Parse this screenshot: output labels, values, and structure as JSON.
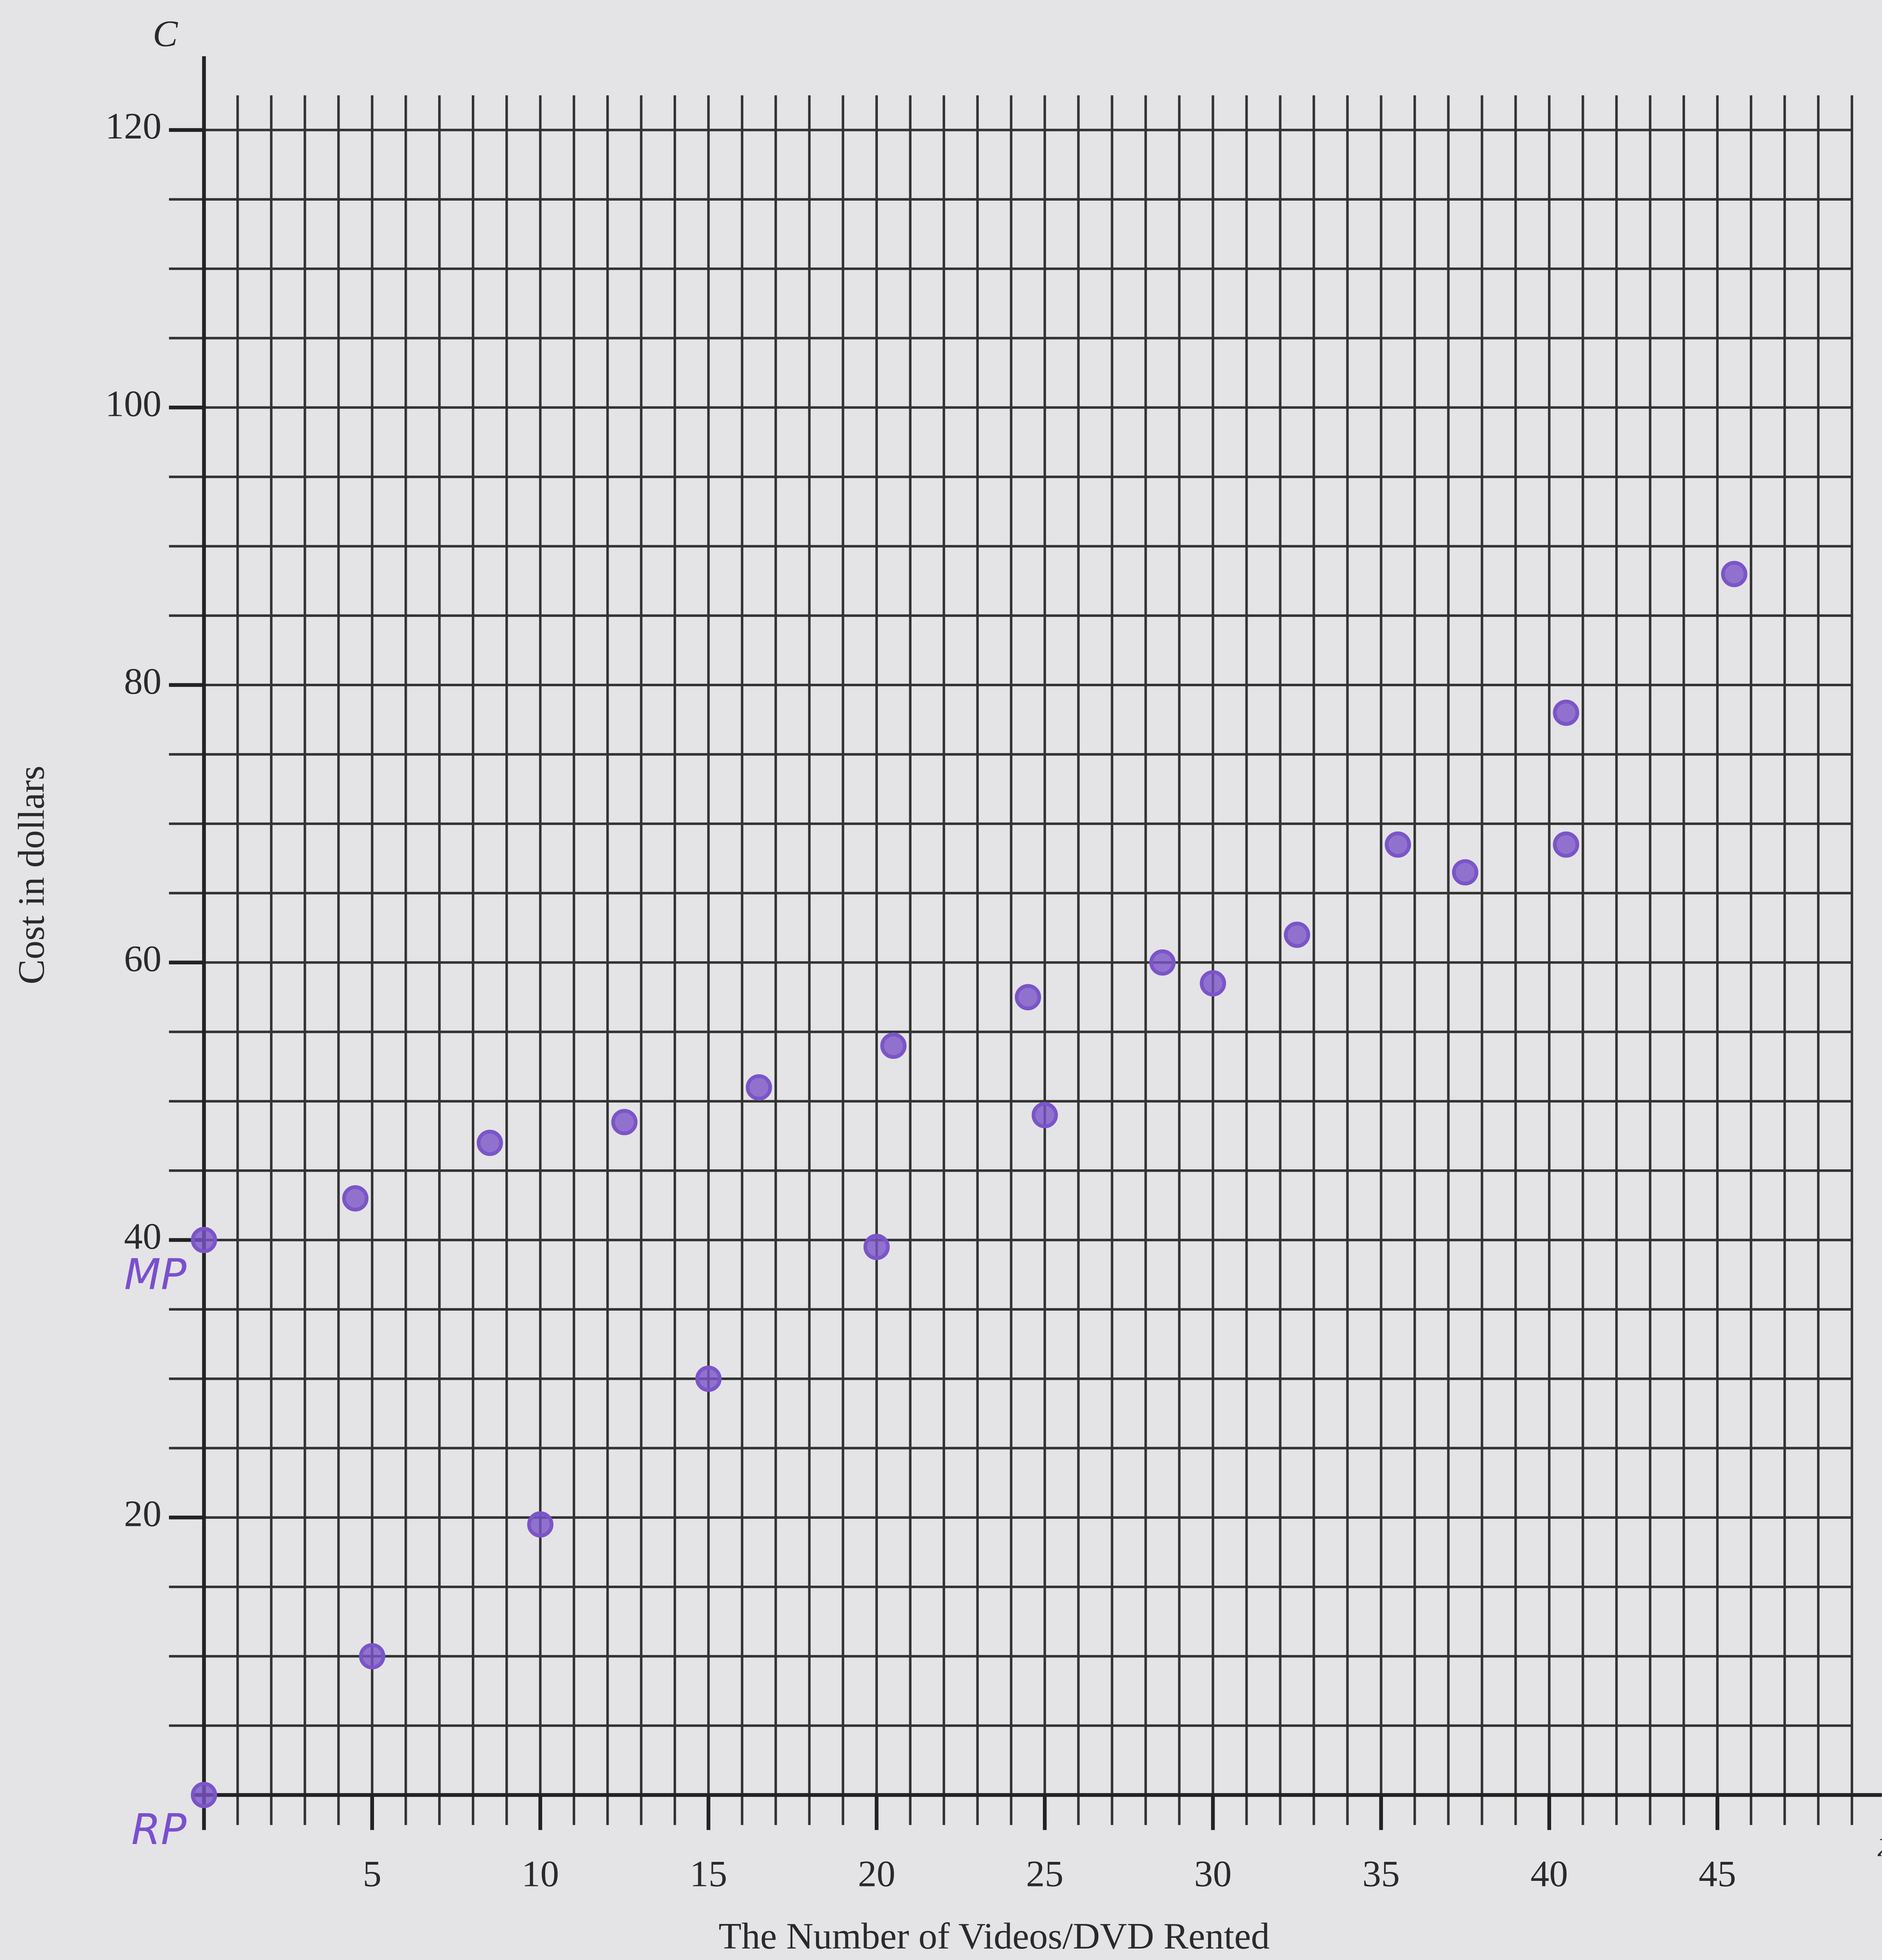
{
  "chart_data": {
    "type": "scatter",
    "xlabel": "The Number of Videos/DVD Rented",
    "ylabel": "Cost in dollars",
    "y_axis_letter": "C",
    "x_axis_letter": "x",
    "series": [
      {
        "name": "MP",
        "color": "#7b55c8",
        "x": [
          0,
          4.5,
          8.5,
          12.5,
          16.5,
          20.5,
          24.5,
          28.5,
          32.5,
          35.5,
          37.5,
          40.5,
          40.5,
          45.5
        ],
        "values": [
          40,
          43,
          47,
          48.5,
          51,
          54,
          57.5,
          60,
          62,
          68.5,
          66.5,
          68.5,
          78,
          88
        ]
      },
      {
        "name": "RP",
        "color": "#7b55c8",
        "x": [
          0,
          5,
          10,
          15,
          20,
          25,
          30
        ],
        "values": [
          0,
          10,
          19.5,
          30,
          39.5,
          49,
          58.5
        ]
      }
    ],
    "xlim": [
      0,
      49
    ],
    "ylim": [
      0,
      122.5
    ],
    "xticks": [
      5,
      10,
      15,
      20,
      25,
      30,
      35,
      40,
      45
    ],
    "yticks": [
      20,
      40,
      60,
      80,
      100,
      120
    ],
    "grid": true,
    "grid_x_step": 1,
    "grid_y_step": 5
  }
}
